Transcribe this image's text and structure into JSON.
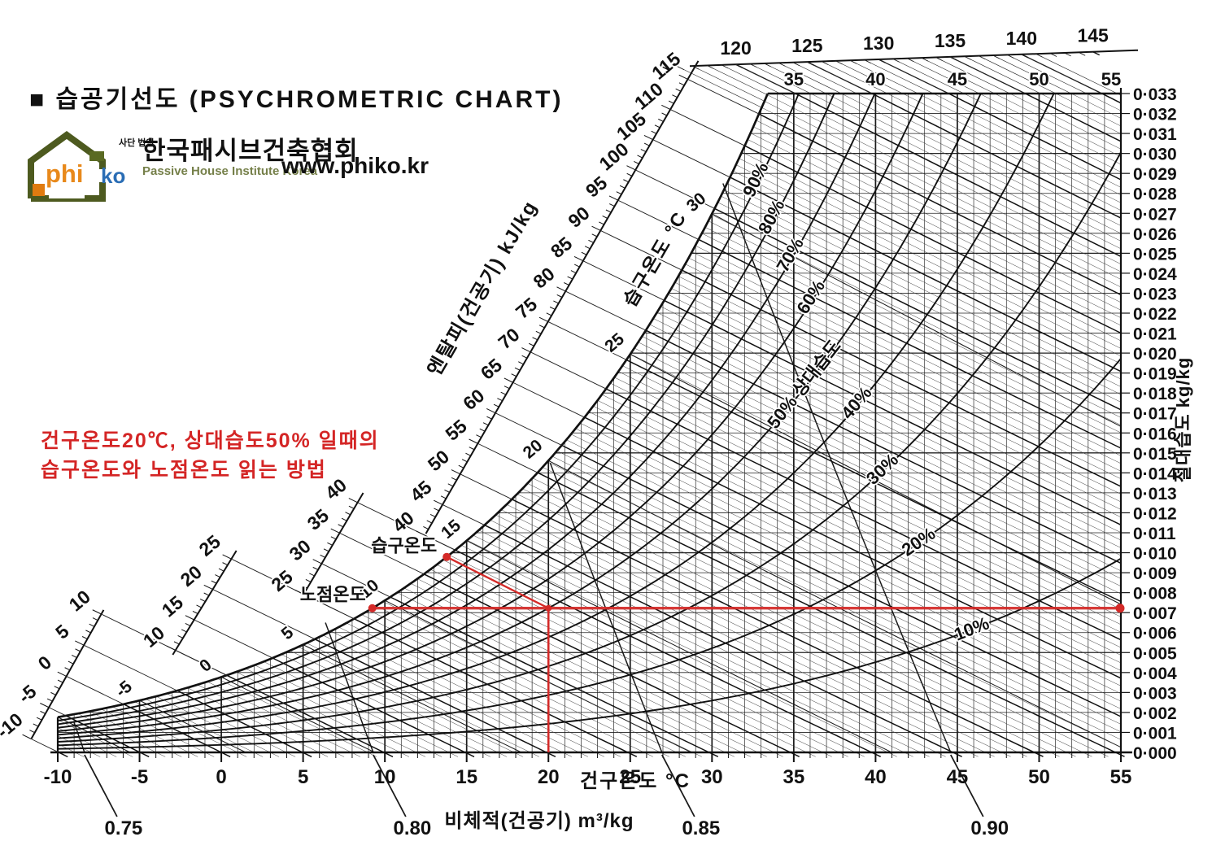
{
  "header": {
    "title": "■ 습공기선도 (PSYCHROMETRIC CHART)",
    "logo": {
      "phi": "phi",
      "ko": "ko",
      "assoc_type": "사단 법인",
      "org_kr": "한국패시브건축협회",
      "org_en": "Passive House Institute Korea",
      "website": "www.phiko.kr"
    }
  },
  "example_note": {
    "line1": "건구온도20℃, 상대습도50% 일때의",
    "line2": "습구온도와 노점온도 읽는 방법"
  },
  "chart_data": {
    "type": "line",
    "title": "습공기선도 (PSYCHROMETRIC CHART)",
    "grid": "on",
    "x_axis": {
      "label": "건구온도 °C",
      "min": -10,
      "max": 55,
      "major_tick_step": 5,
      "minor_tick_step": 1,
      "tick_labels": [
        -10,
        -5,
        0,
        5,
        10,
        15,
        20,
        25,
        30,
        35,
        40,
        45,
        50,
        55
      ]
    },
    "y_axis": {
      "label": "절대습도 kg/kg",
      "min": 0.0,
      "max": 0.033,
      "tick_step": 0.001,
      "tick_label_style": "middle-dot e.g. 0·033"
    },
    "top_dry_bulb_labels": [
      35,
      40,
      45,
      50,
      55
    ],
    "enthalpy": {
      "label": "엔탈피(건공기) kJ/kg",
      "min": -10,
      "max": 145,
      "label_step": 5,
      "minor_step": 1,
      "scale_segments": [
        [
          -10,
          10
        ],
        [
          10,
          25
        ],
        [
          25,
          40
        ],
        [
          40,
          115
        ],
        [
          115,
          145
        ]
      ],
      "top_scale_labels": [
        120,
        125,
        130,
        135,
        140,
        145
      ]
    },
    "wet_bulb": {
      "label": "습구온도 °C",
      "line_step": 5,
      "saturation_labels": [
        -5,
        0,
        5,
        10,
        15,
        20,
        25,
        30
      ]
    },
    "rh_curves": {
      "values_percent": [
        10,
        20,
        30,
        40,
        50,
        60,
        70,
        80,
        90
      ],
      "label_suffix": "%",
      "label_50": "50% 상대습도"
    },
    "specific_volume": {
      "label": "비체적(건공기) m³/kg",
      "values": [
        0.75,
        0.8,
        0.85,
        0.9
      ]
    },
    "saturation_curve_samples": {
      "dry_bulb_c": [
        -10,
        0,
        10,
        20,
        30,
        33.4
      ],
      "humidity_ratio": [
        0.0016,
        0.0038,
        0.0077,
        0.0147,
        0.0273,
        0.033
      ]
    },
    "example_point": {
      "dry_bulb_c": 20,
      "rh_percent": 50,
      "humidity_ratio": 0.0073,
      "wet_bulb_label": "습구온도",
      "dew_point_label": "노점온도",
      "red_color": "#d42a28"
    }
  }
}
